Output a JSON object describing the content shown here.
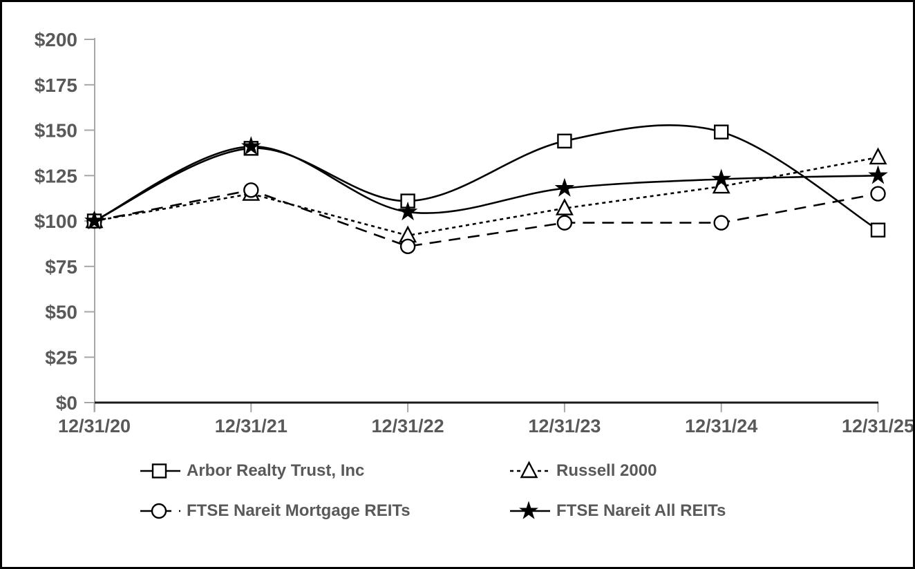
{
  "chart_data": {
    "type": "line",
    "x_categories": [
      "12/31/20",
      "12/31/21",
      "12/31/22",
      "12/31/23",
      "12/31/24",
      "12/31/25"
    ],
    "y_ticks": [
      0,
      25,
      50,
      75,
      100,
      125,
      150,
      175,
      200
    ],
    "y_tick_labels": [
      "$0",
      "$25",
      "$50",
      "$75",
      "$100",
      "$125",
      "$150",
      "$175",
      "$200"
    ],
    "ylim": [
      0,
      200
    ],
    "grid": false,
    "legend_position": "bottom",
    "series": [
      {
        "name": "Arbor Realty Trust, Inc",
        "values": [
          100,
          140,
          111,
          144,
          149,
          95
        ],
        "marker": "square",
        "line_style": "solid",
        "smooth": true
      },
      {
        "name": "Russell 2000",
        "values": [
          100,
          115,
          92,
          107,
          119,
          135
        ],
        "marker": "triangle",
        "line_style": "dotted",
        "smooth": false
      },
      {
        "name": "FTSE Nareit Mortgage REITs",
        "values": [
          100,
          117,
          86,
          99,
          99,
          115
        ],
        "marker": "circle",
        "line_style": "dashed",
        "smooth": false
      },
      {
        "name": "FTSE Nareit All REITs",
        "values": [
          100,
          141,
          105,
          118,
          123,
          125
        ],
        "marker": "star",
        "line_style": "solid",
        "smooth": true
      }
    ],
    "colors": {
      "line": "#000000",
      "axis": "#a6a6a6",
      "baseline": "#1a1a1a",
      "label": "#595959",
      "marker_fill": "#ffffff"
    }
  },
  "legend": {
    "items": [
      {
        "label": "Arbor Realty Trust, Inc"
      },
      {
        "label": "Russell 2000"
      },
      {
        "label": "FTSE Nareit Mortgage REITs"
      },
      {
        "label": "FTSE Nareit All REITs"
      }
    ]
  }
}
